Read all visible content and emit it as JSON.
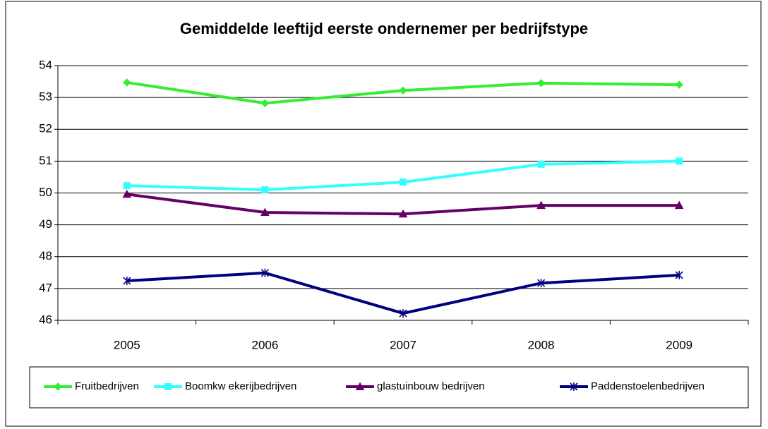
{
  "chart_data": {
    "type": "line",
    "title": "Gemiddelde leeftijd eerste ondernemer per bedrijfstype",
    "categories": [
      "2005",
      "2006",
      "2007",
      "2008",
      "2009"
    ],
    "series": [
      {
        "name": "Fruitbedrijven",
        "color": "#33ee33",
        "marker": "diamond",
        "values": [
          53.47,
          52.82,
          53.22,
          53.45,
          53.4
        ]
      },
      {
        "name": "Boomkw ekerijbedrijven",
        "color": "#33ffff",
        "marker": "square",
        "values": [
          50.23,
          50.1,
          50.34,
          50.9,
          51.0
        ]
      },
      {
        "name": "glastuinbouw bedrijven",
        "color": "#660066",
        "marker": "triangle",
        "values": [
          49.96,
          49.39,
          49.34,
          49.61,
          49.61
        ]
      },
      {
        "name": "Paddenstoelenbedrijven",
        "color": "#000080",
        "marker": "star",
        "values": [
          47.24,
          47.49,
          46.22,
          47.17,
          47.42
        ]
      }
    ],
    "ylim": [
      46,
      54
    ],
    "yticks": [
      46,
      47,
      48,
      49,
      50,
      51,
      52,
      53,
      54
    ],
    "grid": true,
    "legend": "bottom"
  }
}
